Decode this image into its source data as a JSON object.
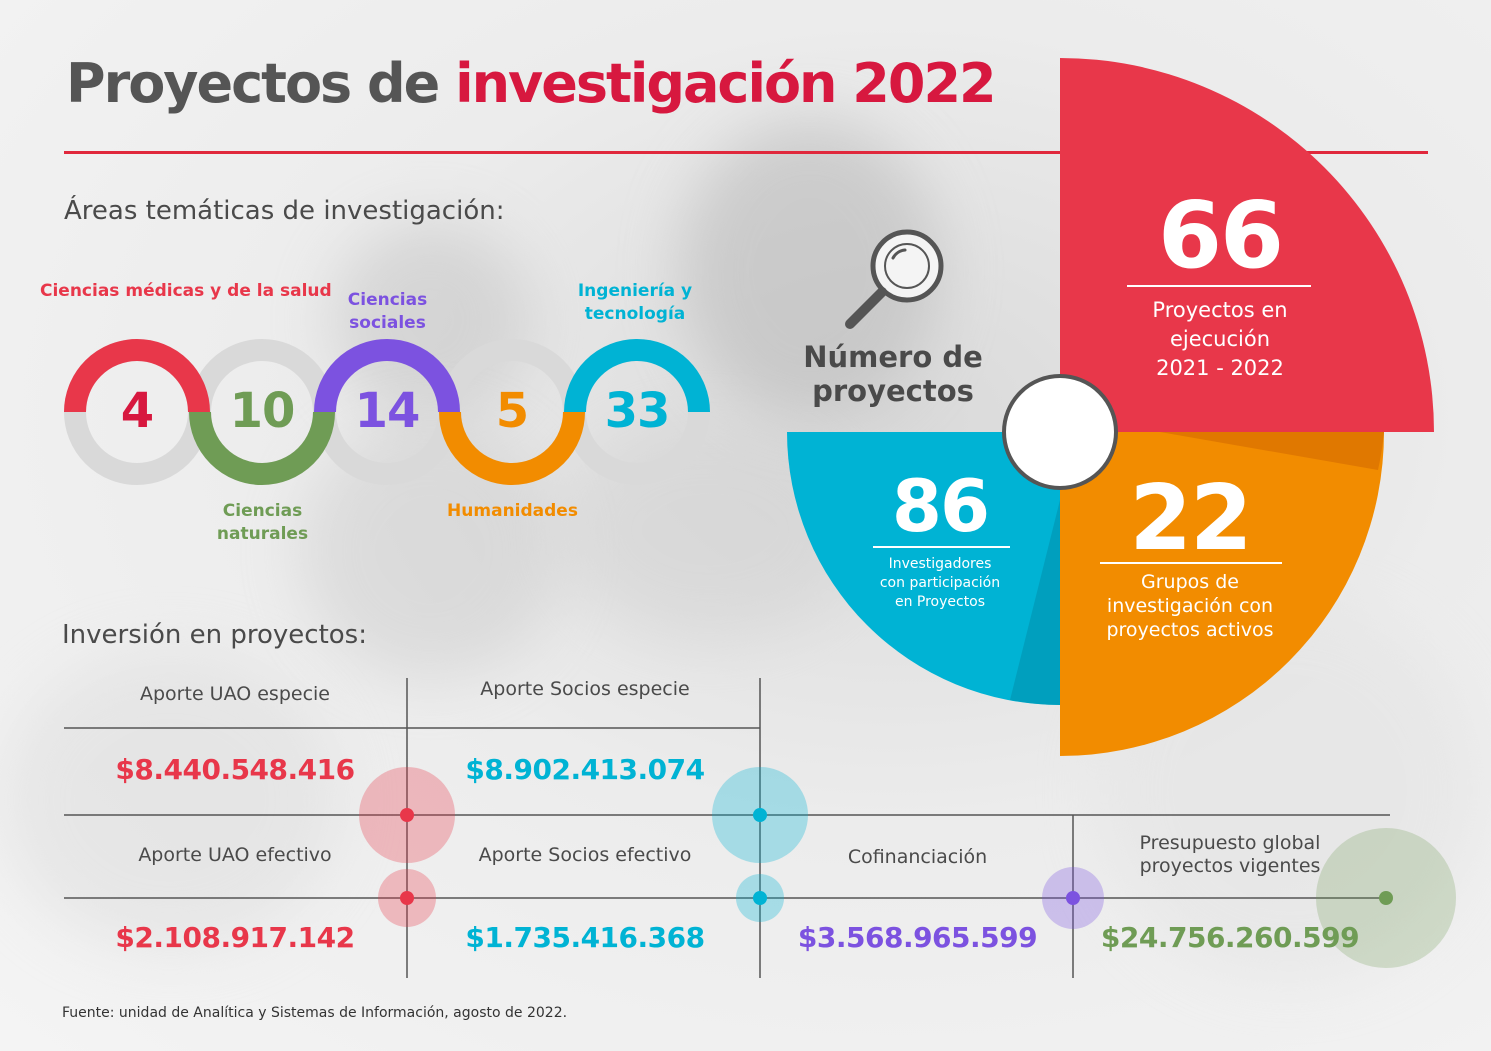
{
  "title": {
    "prefix": "Proyectos de",
    "accent": "investigación 2022"
  },
  "colors": {
    "red": "#e8374a",
    "green": "#6f9c55",
    "purple": "#7c52e0",
    "orange": "#f28c00",
    "cyan": "#00b3d4",
    "gray_ring": "#d9d9d9",
    "title_accent": "#d7183f"
  },
  "areas": {
    "heading": "Áreas temáticas de investigación:",
    "items": [
      {
        "label": "Ciencias médicas y de la salud",
        "value": "4",
        "color": "#e8374a"
      },
      {
        "label": "Ciencias naturales",
        "value": "10",
        "color": "#6f9c55"
      },
      {
        "label": "Ciencias sociales",
        "value": "14",
        "color": "#7c52e0"
      },
      {
        "label": "Humanidades",
        "value": "5",
        "color": "#f28c00"
      },
      {
        "label": "Ingeniería y tecnología",
        "value": "33",
        "color": "#00b3d4"
      }
    ]
  },
  "projects": {
    "heading": "Número de proyectos",
    "icon": "magnifier-icon",
    "in_execution": {
      "value": "66",
      "label_line1": "Proyectos en",
      "label_line2": "ejecución",
      "label_line3": "2021 - 2022"
    },
    "researchers": {
      "value": "86",
      "label_line1": "Investigadores",
      "label_line2": "con participación",
      "label_line3": "en Proyectos"
    },
    "groups": {
      "value": "22",
      "label_line1": "Grupos de",
      "label_line2": "investigación con",
      "label_line3": "proyectos activos"
    }
  },
  "investment": {
    "heading": "Inversión en proyectos:",
    "uao_especie": {
      "label": "Aporte UAO especie",
      "value": "$8.440.548.416"
    },
    "socios_especie": {
      "label": "Aporte Socios especie",
      "value": "$8.902.413.074"
    },
    "uao_efectivo": {
      "label": "Aporte UAO efectivo",
      "value": "$2.108.917.142"
    },
    "socios_efectivo": {
      "label": "Aporte Socios efectivo",
      "value": "$1.735.416.368"
    },
    "cofinanciacion": {
      "label": "Cofinanciación",
      "value": "$3.568.965.599"
    },
    "presupuesto": {
      "label_line1": "Presupuesto global",
      "label_line2": "proyectos vigentes",
      "value": "$24.756.260.599"
    }
  },
  "source": "Fuente: unidad de Analítica y Sistemas de Información, agosto de 2022."
}
